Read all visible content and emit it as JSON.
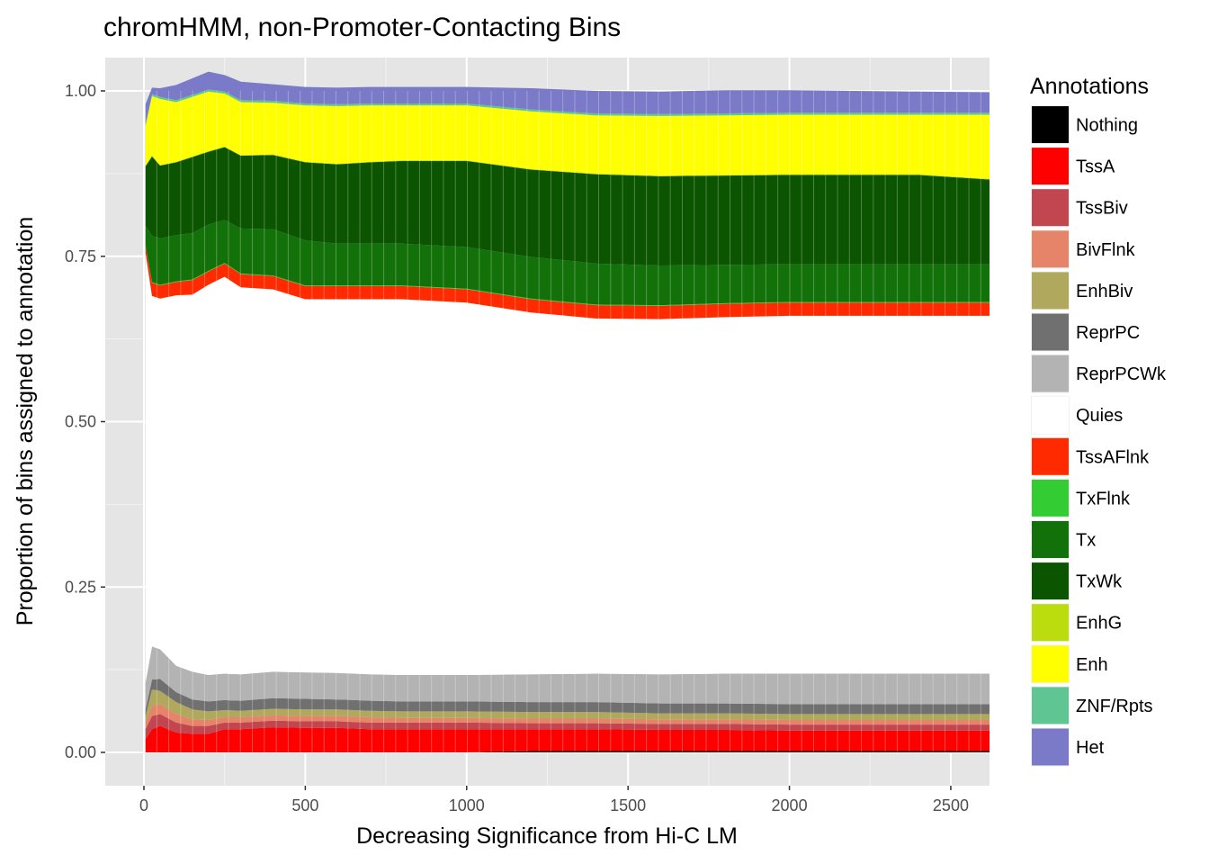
{
  "chart_data": {
    "type": "area",
    "stacked": true,
    "normalized": true,
    "title": "chromHMM, non-Promoter-Contacting Bins",
    "xlabel": "Decreasing Significance from Hi-C LM",
    "ylabel": "Proportion of bins assigned to annotation",
    "xlim": [
      0,
      2620
    ],
    "ylim": [
      0,
      1
    ],
    "x_ticks": [
      0,
      500,
      1000,
      1500,
      2000,
      2500
    ],
    "y_ticks": [
      0.0,
      0.25,
      0.5,
      0.75,
      1.0
    ],
    "x_tick_labels": [
      "0",
      "500",
      "1000",
      "1500",
      "2000",
      "2500"
    ],
    "y_tick_labels": [
      "0.00",
      "0.25",
      "0.50",
      "0.75",
      "1.00"
    ],
    "grid": true,
    "background": "#e5e5e5",
    "legend": {
      "title": "Annotations",
      "position": "right"
    },
    "x": [
      5,
      25,
      50,
      100,
      150,
      200,
      250,
      300,
      400,
      500,
      600,
      700,
      800,
      1000,
      1200,
      1400,
      1600,
      1800,
      2000,
      2200,
      2400,
      2620
    ],
    "series": [
      {
        "name": "Nothing",
        "color": "#000000",
        "values": [
          0,
          0,
          0,
          0,
          0,
          0,
          0,
          0,
          0,
          0,
          0,
          0,
          0,
          0,
          0.002,
          0.002,
          0.002,
          0.002,
          0.002,
          0.002,
          0.002,
          0.002
        ]
      },
      {
        "name": "TssA",
        "color": "#ff0000",
        "values": [
          0.02,
          0.035,
          0.04,
          0.03,
          0.028,
          0.028,
          0.035,
          0.035,
          0.038,
          0.037,
          0.037,
          0.035,
          0.035,
          0.035,
          0.033,
          0.033,
          0.032,
          0.032,
          0.031,
          0.031,
          0.031,
          0.031
        ]
      },
      {
        "name": "TssBiv",
        "color": "#c1464f",
        "values": [
          0.015,
          0.02,
          0.018,
          0.015,
          0.012,
          0.012,
          0.01,
          0.01,
          0.01,
          0.01,
          0.01,
          0.01,
          0.01,
          0.01,
          0.009,
          0.009,
          0.009,
          0.009,
          0.009,
          0.009,
          0.009,
          0.009
        ]
      },
      {
        "name": "BivFlnk",
        "color": "#e58469",
        "values": [
          0.01,
          0.015,
          0.015,
          0.013,
          0.01,
          0.009,
          0.008,
          0.008,
          0.008,
          0.008,
          0.008,
          0.008,
          0.007,
          0.007,
          0.007,
          0.007,
          0.007,
          0.007,
          0.007,
          0.007,
          0.007,
          0.007
        ]
      },
      {
        "name": "EnhBiv",
        "color": "#b0a85d",
        "values": [
          0.01,
          0.025,
          0.02,
          0.018,
          0.015,
          0.013,
          0.011,
          0.01,
          0.01,
          0.01,
          0.01,
          0.01,
          0.01,
          0.01,
          0.01,
          0.01,
          0.009,
          0.009,
          0.009,
          0.009,
          0.009,
          0.009
        ]
      },
      {
        "name": "ReprPC",
        "color": "#707070",
        "values": [
          0.01,
          0.015,
          0.018,
          0.015,
          0.015,
          0.015,
          0.015,
          0.015,
          0.016,
          0.016,
          0.015,
          0.015,
          0.015,
          0.015,
          0.015,
          0.015,
          0.015,
          0.015,
          0.015,
          0.015,
          0.015,
          0.015
        ]
      },
      {
        "name": "ReprPCWk",
        "color": "#b3b3b3",
        "values": [
          0.04,
          0.05,
          0.045,
          0.04,
          0.042,
          0.04,
          0.04,
          0.04,
          0.04,
          0.04,
          0.04,
          0.04,
          0.04,
          0.04,
          0.042,
          0.043,
          0.044,
          0.045,
          0.046,
          0.046,
          0.046,
          0.046
        ]
      },
      {
        "name": "Quies",
        "color": "#ffffff",
        "values": [
          0.65,
          0.53,
          0.53,
          0.56,
          0.57,
          0.59,
          0.6,
          0.585,
          0.578,
          0.564,
          0.565,
          0.567,
          0.568,
          0.563,
          0.547,
          0.537,
          0.537,
          0.539,
          0.541,
          0.541,
          0.541,
          0.541
        ]
      },
      {
        "name": "TssAFlnk",
        "color": "#ff2a00",
        "values": [
          0.01,
          0.02,
          0.02,
          0.02,
          0.022,
          0.02,
          0.02,
          0.02,
          0.02,
          0.02,
          0.02,
          0.02,
          0.02,
          0.02,
          0.02,
          0.02,
          0.02,
          0.02,
          0.02,
          0.02,
          0.02,
          0.02
        ]
      },
      {
        "name": "TxFlnk",
        "color": "#33cc33",
        "values": [
          0.001,
          0.001,
          0.001,
          0.001,
          0.001,
          0.001,
          0.001,
          0.001,
          0.001,
          0.001,
          0.001,
          0.001,
          0.001,
          0.001,
          0.001,
          0.001,
          0.001,
          0.001,
          0.001,
          0.001,
          0.001,
          0.001
        ]
      },
      {
        "name": "Tx",
        "color": "#137109",
        "values": [
          0.03,
          0.07,
          0.07,
          0.07,
          0.07,
          0.07,
          0.065,
          0.068,
          0.07,
          0.068,
          0.063,
          0.063,
          0.063,
          0.063,
          0.063,
          0.062,
          0.06,
          0.058,
          0.057,
          0.057,
          0.057,
          0.057
        ]
      },
      {
        "name": "TxWk",
        "color": "#0b5400",
        "values": [
          0.09,
          0.12,
          0.11,
          0.11,
          0.115,
          0.11,
          0.11,
          0.11,
          0.112,
          0.118,
          0.12,
          0.123,
          0.125,
          0.13,
          0.132,
          0.135,
          0.135,
          0.135,
          0.135,
          0.135,
          0.135,
          0.128
        ]
      },
      {
        "name": "EnhG",
        "color": "#bbdd0e",
        "values": [
          0.001,
          0.001,
          0.001,
          0.001,
          0.001,
          0.001,
          0.001,
          0.001,
          0.001,
          0.001,
          0.001,
          0.001,
          0.001,
          0.001,
          0.001,
          0.001,
          0.001,
          0.001,
          0.001,
          0.001,
          0.001,
          0.001
        ]
      },
      {
        "name": "Enh",
        "color": "#ffff00",
        "values": [
          0.06,
          0.09,
          0.1,
          0.09,
          0.09,
          0.09,
          0.08,
          0.08,
          0.078,
          0.085,
          0.087,
          0.085,
          0.083,
          0.083,
          0.087,
          0.088,
          0.09,
          0.09,
          0.09,
          0.09,
          0.09,
          0.097
        ]
      },
      {
        "name": "ZNF/Rpts",
        "color": "#5ec593",
        "values": [
          0.003,
          0.003,
          0.003,
          0.003,
          0.003,
          0.003,
          0.003,
          0.003,
          0.003,
          0.003,
          0.003,
          0.003,
          0.003,
          0.003,
          0.003,
          0.003,
          0.003,
          0.003,
          0.003,
          0.003,
          0.003,
          0.003
        ]
      },
      {
        "name": "Het",
        "color": "#7a7ac8",
        "values": [
          0.03,
          0.01,
          0.013,
          0.023,
          0.025,
          0.027,
          0.025,
          0.028,
          0.025,
          0.025,
          0.025,
          0.025,
          0.025,
          0.025,
          0.032,
          0.034,
          0.034,
          0.035,
          0.034,
          0.033,
          0.032,
          0.031
        ]
      }
    ]
  }
}
